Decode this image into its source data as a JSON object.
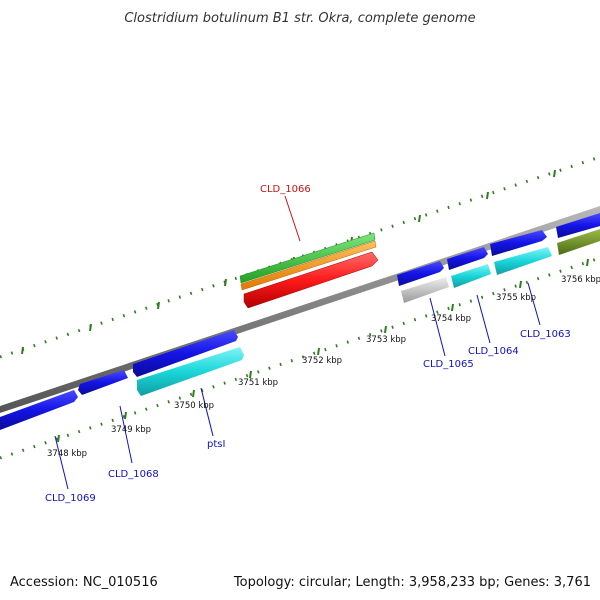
{
  "title": "Clostridium botulinum B1 str. Okra, complete genome",
  "footer": {
    "accession": "Accession: NC_010516",
    "topology": "Topology: circular; Length: 3,958,233 bp; Genes: 3,761"
  },
  "colors": {
    "backbone": "#808080",
    "tick": "#2e7d1e",
    "gene_blue": "#1616e0",
    "gene_cyan": "#19d8dc",
    "gene_red": "#ff2020",
    "gene_orange": "#ff9a00",
    "gene_green": "#33c633",
    "gene_olive": "#6b8e23",
    "gene_gray": "#bdbdbd",
    "label_blue": "#1010c8",
    "label_red": "#d01010"
  },
  "ticks": [
    "3748 kbp",
    "3749 kbp",
    "3750 kbp",
    "3751 kbp",
    "3752 kbp",
    "3753 kbp",
    "3754 kbp",
    "3755 kbp",
    "3756 kbp"
  ],
  "gene_labels": [
    {
      "text": "CLD_1066",
      "color": "label_red"
    },
    {
      "text": "CLD_1065",
      "color": "label_blue"
    },
    {
      "text": "CLD_1064",
      "color": "label_blue"
    },
    {
      "text": "CLD_1063",
      "color": "label_blue"
    },
    {
      "text": "ptsI",
      "color": "label_blue"
    },
    {
      "text": "CLD_1068",
      "color": "label_blue"
    },
    {
      "text": "CLD_1069",
      "color": "label_blue"
    }
  ]
}
